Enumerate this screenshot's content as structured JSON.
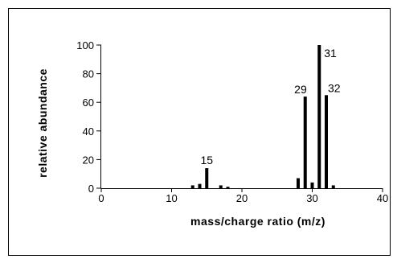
{
  "chart_data": {
    "type": "bar",
    "xlabel": "mass/charge ratio (m/z)",
    "ylabel": "relative abundance",
    "xlim": [
      0,
      40
    ],
    "ylim": [
      0,
      100
    ],
    "x_ticks": [
      "0",
      "10",
      "20",
      "30",
      "40"
    ],
    "y_ticks": [
      "0",
      "20",
      "40",
      "60",
      "80",
      "100"
    ],
    "grid": false,
    "bar_color": "#000000",
    "x": [
      13,
      14,
      15,
      17,
      18,
      28,
      29,
      30,
      31,
      32,
      33
    ],
    "values": [
      2,
      3,
      14,
      2,
      1,
      7,
      64,
      4,
      100,
      65,
      2
    ],
    "peak_labels": [
      {
        "x": 15,
        "text": "15"
      },
      {
        "x": 29,
        "text": "29"
      },
      {
        "x": 31,
        "text": "31"
      },
      {
        "x": 32,
        "text": "32"
      }
    ]
  }
}
